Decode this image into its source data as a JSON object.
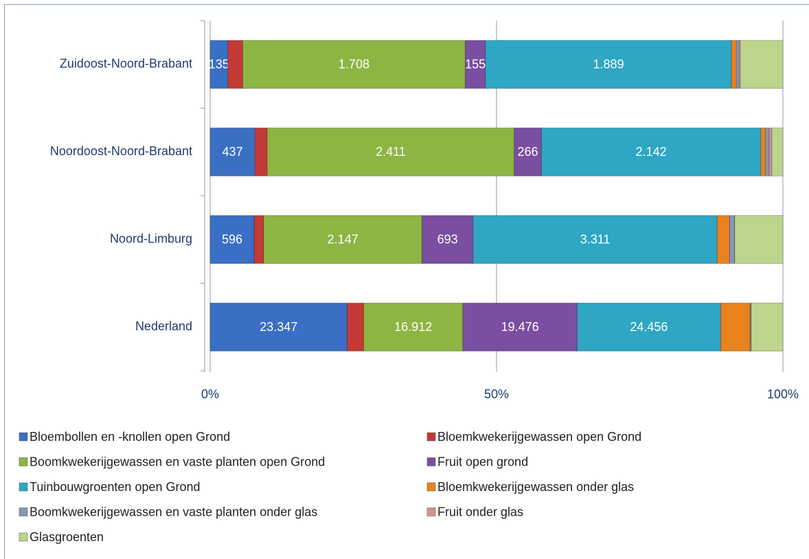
{
  "chart_data": {
    "type": "bar",
    "orientation": "horizontal",
    "stacked": "percent",
    "categories": [
      "Zuidoost-Noord-Brabant",
      "Noordoost-Noord-Brabant",
      "Noord-Limburg",
      "Nederland"
    ],
    "xlim": [
      0,
      100
    ],
    "xticks": [
      {
        "value": 0,
        "label": "0%"
      },
      {
        "value": 50,
        "label": "50%"
      },
      {
        "value": 100,
        "label": "100%"
      }
    ],
    "grid": true,
    "series": [
      {
        "name": "Bloembollen en -knollen open Grond",
        "color": "#3a6fc4",
        "values": [
          135,
          437,
          596,
          23347
        ],
        "value_labels": [
          "135",
          "437",
          "596",
          "23.347"
        ]
      },
      {
        "name": "Bloemkwekerijgewassen open Grond",
        "color": "#c33a36",
        "values": [
          115,
          121,
          130,
          2800
        ]
      },
      {
        "name": "Boomkwekerijgewassen en vaste planten open Grond",
        "color": "#8db543",
        "values": [
          1708,
          2411,
          2147,
          16912
        ],
        "value_labels": [
          "1.708",
          "2.411",
          "2.147",
          "16.912"
        ]
      },
      {
        "name": "Fruit open grond",
        "color": "#7a4ea0",
        "values": [
          155,
          266,
          693,
          19476
        ],
        "value_labels": [
          "155",
          "266",
          "693",
          "19.476"
        ]
      },
      {
        "name": "Tuinbouwgroenten open Grond",
        "color": "#2ea6c4",
        "values": [
          1889,
          2142,
          3311,
          24456
        ],
        "value_labels": [
          "1.889",
          "2.142",
          "3.311",
          "24.456"
        ]
      },
      {
        "name": "Bloemkwekerijgewassen onder glas",
        "color": "#e8821e",
        "values": [
          37,
          47,
          168,
          5000
        ]
      },
      {
        "name": "Boomkwekerijgewassen en vaste planten onder glas",
        "color": "#8497b8",
        "values": [
          21,
          34,
          65,
          150
        ]
      },
      {
        "name": "Fruit onder glas",
        "color": "#d49090",
        "values": [
          10,
          27,
          5,
          50
        ]
      },
      {
        "name": "Glasgroenten",
        "color": "#bdd48c",
        "values": [
          326,
          108,
          653,
          5400
        ]
      }
    ]
  }
}
